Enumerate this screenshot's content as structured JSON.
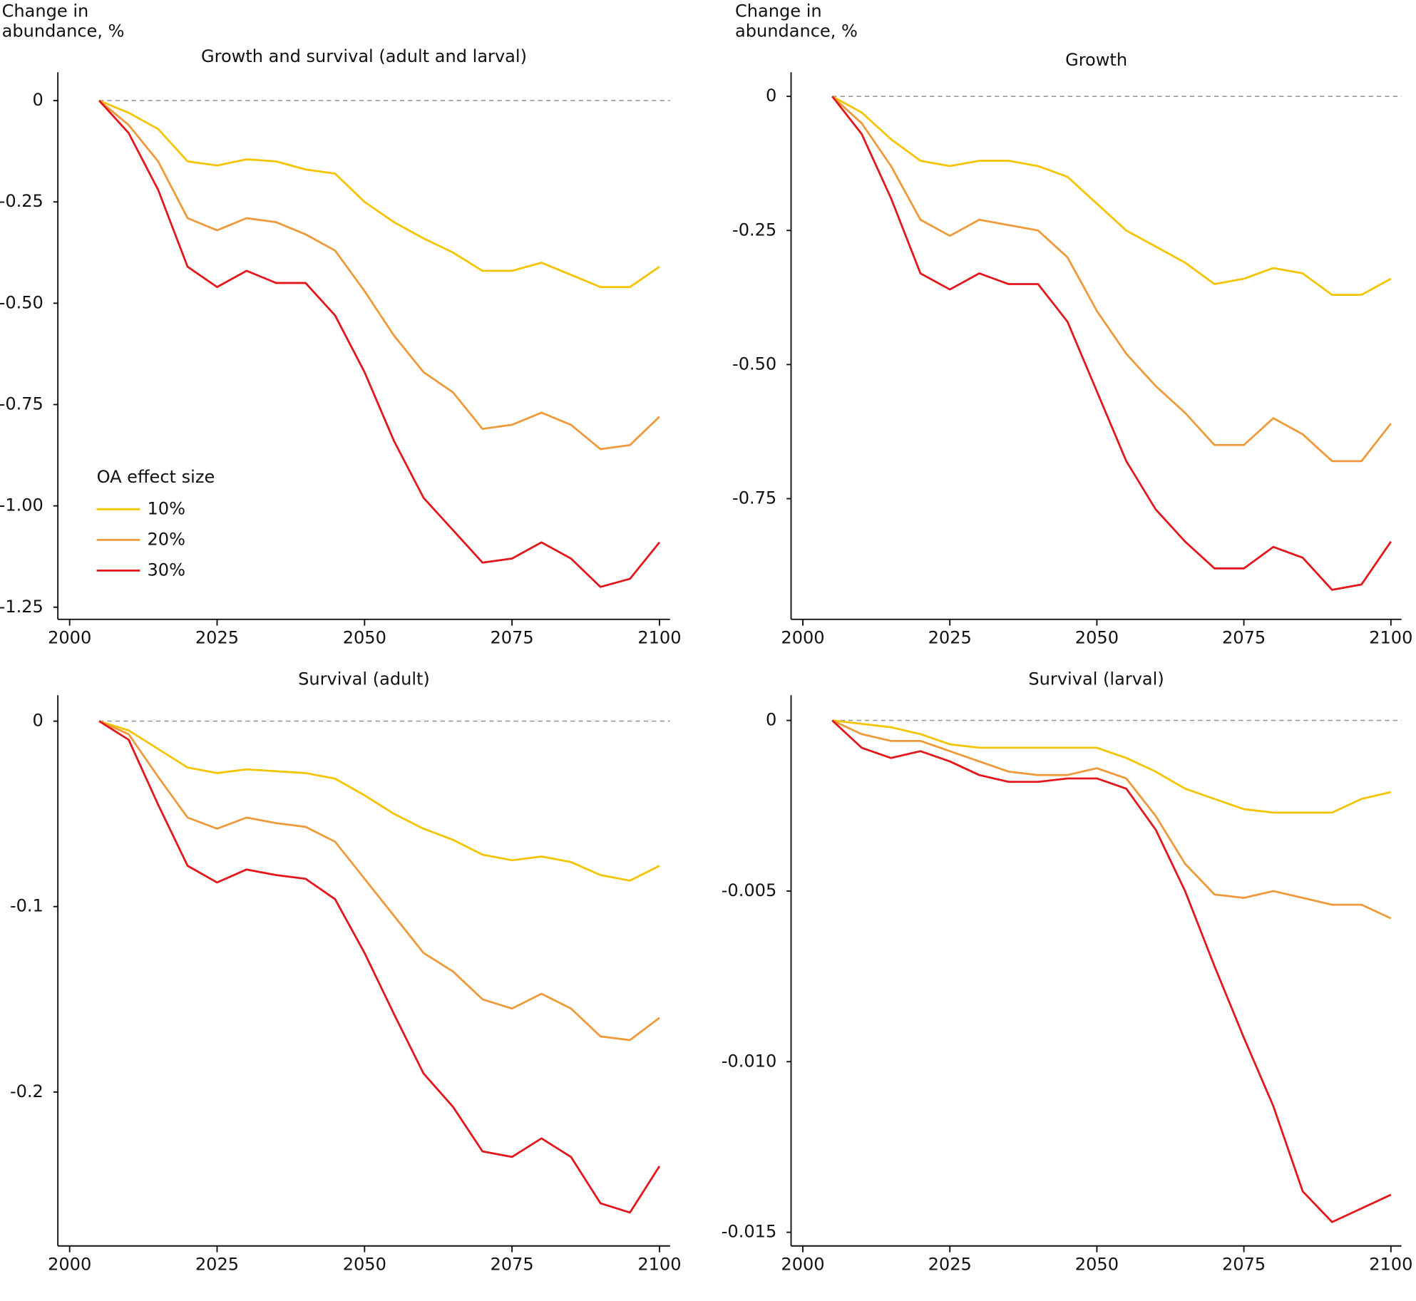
{
  "chart_data": [
    {
      "type": "line",
      "title": "Growth and survival (adult and larval)",
      "ylabel": "Change in\nabundance, %",
      "x": [
        2005,
        2010,
        2015,
        2020,
        2025,
        2030,
        2035,
        2040,
        2045,
        2050,
        2055,
        2060,
        2065,
        2070,
        2075,
        2080,
        2085,
        2090,
        2095,
        2100
      ],
      "series": [
        {
          "name": "10%",
          "color": "#f5c400",
          "values": [
            0,
            -0.03,
            -0.07,
            -0.15,
            -0.16,
            -0.145,
            -0.15,
            -0.17,
            -0.18,
            -0.25,
            -0.3,
            -0.34,
            -0.375,
            -0.42,
            -0.42,
            -0.4,
            -0.43,
            -0.46,
            -0.46,
            -0.41
          ]
        },
        {
          "name": "20%",
          "color": "#ee9a3a",
          "values": [
            0,
            -0.06,
            -0.15,
            -0.29,
            -0.32,
            -0.29,
            -0.3,
            -0.33,
            -0.37,
            -0.47,
            -0.58,
            -0.67,
            -0.72,
            -0.81,
            -0.8,
            -0.77,
            -0.8,
            -0.86,
            -0.85,
            -0.78
          ]
        },
        {
          "name": "30%",
          "color": "#e3161b",
          "values": [
            0,
            -0.08,
            -0.22,
            -0.41,
            -0.46,
            -0.42,
            -0.45,
            -0.45,
            -0.53,
            -0.67,
            -0.84,
            -0.98,
            -1.06,
            -1.14,
            -1.13,
            -1.09,
            -1.13,
            -1.2,
            -1.18,
            -1.09
          ]
        }
      ],
      "legend": {
        "title": "OA effect size",
        "position": "lower left"
      },
      "xlim": [
        1998,
        2101.8
      ],
      "xticks": [
        2000,
        2025,
        2050,
        2075,
        2100
      ],
      "ylim": [
        -1.28,
        0.07
      ],
      "yticks": [
        0,
        -0.25,
        {
          "value": -0.5,
          "label": "-0.50"
        },
        -0.75,
        {
          "value": -1,
          "label": "-1.00"
        },
        -1.25
      ],
      "reference_line": 0
    },
    {
      "type": "line",
      "title": "Growth",
      "ylabel": "Change in\nabundance, %",
      "x": [
        2005,
        2010,
        2015,
        2020,
        2025,
        2030,
        2035,
        2040,
        2045,
        2050,
        2055,
        2060,
        2065,
        2070,
        2075,
        2080,
        2085,
        2090,
        2095,
        2100
      ],
      "series": [
        {
          "color": "#f5c400",
          "values": [
            0,
            -0.03,
            -0.08,
            -0.12,
            -0.13,
            -0.12,
            -0.12,
            -0.13,
            -0.15,
            -0.2,
            -0.25,
            -0.28,
            -0.31,
            -0.35,
            -0.34,
            -0.32,
            -0.33,
            -0.37,
            -0.37,
            -0.34
          ]
        },
        {
          "color": "#ee9a3a",
          "values": [
            0,
            -0.05,
            -0.13,
            -0.23,
            -0.26,
            -0.23,
            -0.24,
            -0.25,
            -0.3,
            -0.4,
            -0.48,
            -0.54,
            -0.59,
            -0.65,
            -0.65,
            -0.6,
            -0.63,
            -0.68,
            -0.68,
            -0.61
          ]
        },
        {
          "color": "#e3161b",
          "values": [
            0,
            -0.07,
            -0.19,
            -0.33,
            -0.36,
            -0.33,
            -0.35,
            -0.35,
            -0.42,
            -0.55,
            -0.68,
            -0.77,
            -0.83,
            -0.88,
            -0.88,
            -0.84,
            -0.86,
            -0.92,
            -0.91,
            -0.83
          ]
        }
      ],
      "xlim": [
        1998,
        2101.8
      ],
      "xticks": [
        2000,
        2025,
        2050,
        2075,
        2100
      ],
      "ylim": [
        -0.975,
        0.045
      ],
      "yticks": [
        0,
        -0.25,
        {
          "value": -0.5,
          "label": "-0.50"
        },
        -0.75
      ],
      "reference_line": 0
    },
    {
      "type": "line",
      "title": "Survival (adult)",
      "x": [
        2005,
        2010,
        2015,
        2020,
        2025,
        2030,
        2035,
        2040,
        2045,
        2050,
        2055,
        2060,
        2065,
        2070,
        2075,
        2080,
        2085,
        2090,
        2095,
        2100
      ],
      "series": [
        {
          "color": "#f5c400",
          "values": [
            0,
            -0.005,
            -0.015,
            -0.025,
            -0.028,
            -0.026,
            -0.027,
            -0.028,
            -0.031,
            -0.04,
            -0.05,
            -0.058,
            -0.064,
            -0.072,
            -0.075,
            -0.073,
            -0.076,
            -0.083,
            -0.086,
            -0.078
          ]
        },
        {
          "color": "#ee9a3a",
          "values": [
            0,
            -0.007,
            -0.03,
            -0.052,
            -0.058,
            -0.052,
            -0.055,
            -0.057,
            -0.065,
            -0.085,
            -0.105,
            -0.125,
            -0.135,
            -0.15,
            -0.155,
            -0.147,
            -0.155,
            -0.17,
            -0.172,
            -0.16
          ]
        },
        {
          "color": "#e3161b",
          "values": [
            0,
            -0.01,
            -0.045,
            -0.078,
            -0.087,
            -0.08,
            -0.083,
            -0.085,
            -0.096,
            -0.125,
            -0.158,
            -0.19,
            -0.208,
            -0.232,
            -0.235,
            -0.225,
            -0.235,
            -0.26,
            -0.265,
            -0.24
          ]
        }
      ],
      "xlim": [
        1998,
        2101.8
      ],
      "xticks": [
        2000,
        2025,
        2050,
        2075,
        2100
      ],
      "ylim": [
        -0.283,
        0.014
      ],
      "yticks": [
        0,
        -0.1,
        -0.2
      ],
      "reference_line": 0
    },
    {
      "type": "line",
      "title": "Survival (larval)",
      "x": [
        2005,
        2010,
        2015,
        2020,
        2025,
        2030,
        2035,
        2040,
        2045,
        2050,
        2055,
        2060,
        2065,
        2070,
        2075,
        2080,
        2085,
        2090,
        2095,
        2100
      ],
      "series": [
        {
          "color": "#f5c400",
          "values": [
            0,
            -0.0001,
            -0.0002,
            -0.0004,
            -0.0007,
            -0.0008,
            -0.0008,
            -0.0008,
            -0.0008,
            -0.0008,
            -0.0011,
            -0.0015,
            -0.002,
            -0.0023,
            -0.0026,
            -0.0027,
            -0.0027,
            -0.0027,
            -0.0023,
            -0.0021
          ]
        },
        {
          "color": "#ee9a3a",
          "values": [
            0,
            -0.0004,
            -0.0006,
            -0.0006,
            -0.0009,
            -0.0012,
            -0.0015,
            -0.0016,
            -0.0016,
            -0.0014,
            -0.0017,
            -0.0028,
            -0.0042,
            -0.0051,
            -0.0052,
            -0.005,
            -0.0052,
            -0.0054,
            -0.0054,
            -0.0058
          ]
        },
        {
          "color": "#e3161b",
          "values": [
            0,
            -0.0008,
            -0.0011,
            -0.0009,
            -0.0012,
            -0.0016,
            -0.0018,
            -0.0018,
            -0.0017,
            -0.0017,
            -0.002,
            -0.0032,
            -0.005,
            -0.0072,
            -0.0093,
            -0.0113,
            -0.0138,
            -0.0147,
            -0.0143,
            -0.0139
          ]
        }
      ],
      "xlim": [
        1998,
        2101.8
      ],
      "xticks": [
        2000,
        2025,
        2050,
        2075,
        2100
      ],
      "ylim": [
        -0.0154,
        0.00074
      ],
      "yticks": [
        0,
        -0.005,
        {
          "value": -0.01,
          "label": "-0.010"
        },
        -0.015
      ],
      "reference_line": 0
    }
  ]
}
